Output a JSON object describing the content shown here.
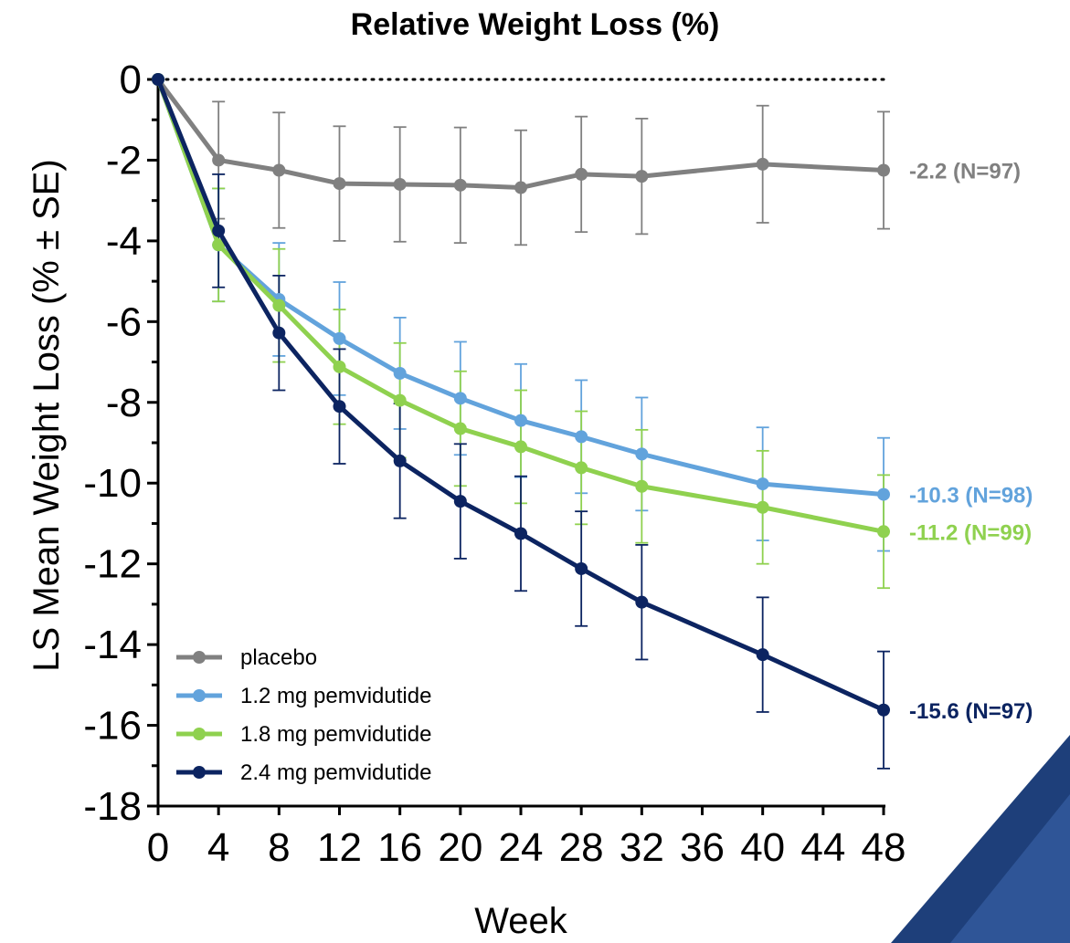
{
  "chart_data": {
    "type": "line",
    "title": "Relative Weight Loss (%)",
    "xlabel": "Week",
    "ylabel": "LS Mean Weight Loss (% ± SE)",
    "xlim": [
      0,
      48
    ],
    "ylim": [
      -18,
      0
    ],
    "xticks": [
      0,
      4,
      8,
      12,
      16,
      20,
      24,
      28,
      32,
      36,
      40,
      44,
      48
    ],
    "yticks": [
      0,
      -2,
      -4,
      -6,
      -8,
      -10,
      -12,
      -14,
      -16,
      -18
    ],
    "xtick_labels": [
      "0",
      "4",
      "8",
      "12",
      "16",
      "20",
      "24",
      "28",
      "32",
      "36",
      "40",
      "44",
      "48"
    ],
    "ytick_labels": [
      "0",
      "-2",
      "-4",
      "-6",
      "-8",
      "-10",
      "-12",
      "-14",
      "-16",
      "-18"
    ],
    "reference_line": 0,
    "legend_position": "bottom-left",
    "series": [
      {
        "name": "placebo",
        "color": "#808080",
        "x": [
          0,
          4,
          8,
          12,
          16,
          20,
          24,
          28,
          32,
          40,
          48
        ],
        "y": [
          0,
          -2.0,
          -2.25,
          -2.58,
          -2.6,
          -2.62,
          -2.68,
          -2.35,
          -2.4,
          -2.1,
          -2.25
        ],
        "se": [
          0,
          1.45,
          1.43,
          1.42,
          1.42,
          1.43,
          1.42,
          1.43,
          1.43,
          1.45,
          1.45
        ],
        "end_label": "-2.2 (N=97)"
      },
      {
        "name": "1.2 mg pemvidutide",
        "color": "#62a3dc",
        "x": [
          0,
          4,
          8,
          12,
          16,
          20,
          24,
          28,
          32,
          40,
          48
        ],
        "y": [
          0,
          -4.1,
          -5.45,
          -6.42,
          -7.28,
          -7.9,
          -8.45,
          -8.85,
          -9.28,
          -10.02,
          -10.28
        ],
        "se": [
          0,
          1.4,
          1.4,
          1.4,
          1.38,
          1.4,
          1.4,
          1.4,
          1.4,
          1.4,
          1.4
        ],
        "end_label": "-10.3 (N=98)"
      },
      {
        "name": "1.8 mg pemvidutide",
        "color": "#8fd14f",
        "x": [
          0,
          4,
          8,
          12,
          16,
          20,
          24,
          28,
          32,
          40,
          48
        ],
        "y": [
          0,
          -4.1,
          -5.6,
          -7.12,
          -7.95,
          -8.65,
          -9.1,
          -9.62,
          -10.08,
          -10.6,
          -11.2
        ],
        "se": [
          0,
          1.4,
          1.4,
          1.42,
          1.42,
          1.42,
          1.4,
          1.4,
          1.4,
          1.4,
          1.4
        ],
        "end_label": "-11.2 (N=99)"
      },
      {
        "name": "2.4 mg pemvidutide",
        "color": "#0c2461",
        "x": [
          0,
          4,
          8,
          12,
          16,
          20,
          24,
          28,
          32,
          40,
          48
        ],
        "y": [
          0,
          -3.75,
          -6.28,
          -8.1,
          -9.45,
          -10.45,
          -11.25,
          -12.12,
          -12.95,
          -14.25,
          -15.62
        ],
        "se": [
          0,
          1.4,
          1.42,
          1.42,
          1.42,
          1.42,
          1.42,
          1.42,
          1.42,
          1.42,
          1.45
        ],
        "end_label": "-15.6 (N=97)"
      }
    ]
  }
}
